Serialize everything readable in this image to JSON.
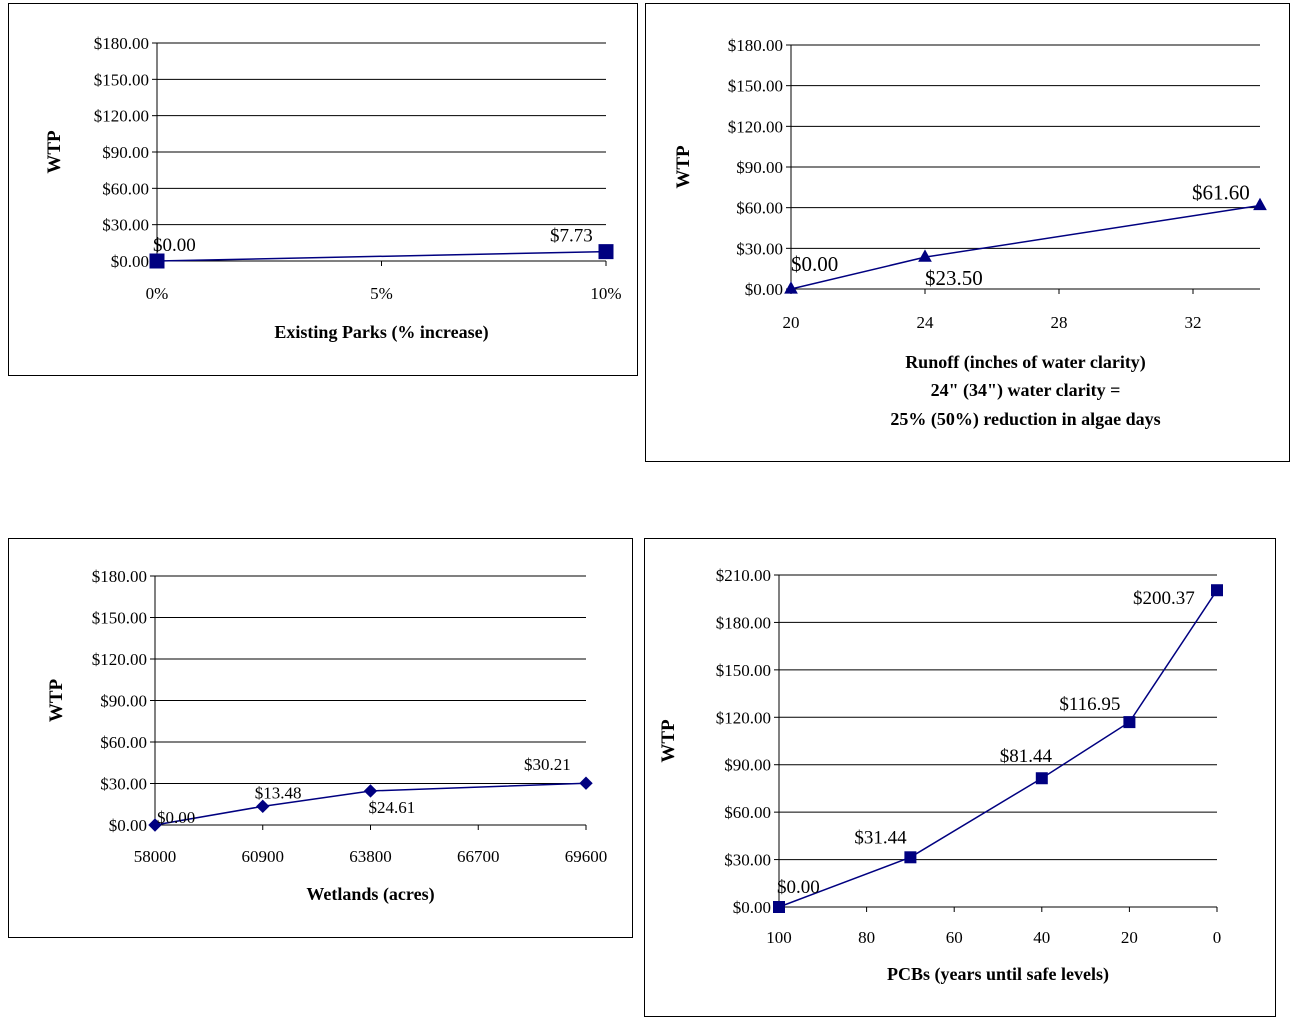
{
  "chart_data": [
    {
      "type": "line",
      "id": "parks",
      "ylabel": "WTP",
      "xlabel": [
        "Existing Parks (% increase)"
      ],
      "x": [
        0,
        10
      ],
      "x_tick_values": [
        0,
        5,
        10
      ],
      "x_tick_labels": [
        "0%",
        "5%",
        "10%"
      ],
      "xlim": [
        0,
        10
      ],
      "values": [
        0.0,
        7.73
      ],
      "data_labels": [
        "$0.00",
        "$7.73"
      ],
      "ylim": [
        0,
        180
      ],
      "y_ticks": [
        0,
        30,
        60,
        90,
        120,
        150,
        180
      ],
      "y_tick_labels": [
        "$0.00",
        "$30.00",
        "$60.00",
        "$90.00",
        "$120.00",
        "$150.00",
        "$180.00"
      ],
      "marker": "square",
      "color": "#000080",
      "grid": true
    },
    {
      "type": "line",
      "id": "runoff",
      "ylabel": "WTP",
      "xlabel": [
        "Runoff (inches of water clarity)",
        "24\" (34\") water clarity =",
        "25% (50%) reduction in algae days"
      ],
      "x": [
        20,
        24,
        34
      ],
      "x_tick_values": [
        20,
        24,
        28,
        32
      ],
      "x_tick_labels": [
        "20",
        "24",
        "28",
        "32"
      ],
      "xlim": [
        20,
        34
      ],
      "values": [
        0.0,
        23.5,
        61.6
      ],
      "data_labels": [
        "$0.00",
        "$23.50",
        "$61.60"
      ],
      "ylim": [
        0,
        180
      ],
      "y_ticks": [
        0,
        30,
        60,
        90,
        120,
        150,
        180
      ],
      "y_tick_labels": [
        "$0.00",
        "$30.00",
        "$60.00",
        "$90.00",
        "$120.00",
        "$150.00",
        "$180.00"
      ],
      "marker": "triangle",
      "color": "#000080",
      "grid": true
    },
    {
      "type": "line",
      "id": "wetlands",
      "ylabel": "WTP",
      "xlabel": [
        "Wetlands (acres)"
      ],
      "x": [
        58000,
        60900,
        63800,
        69600
      ],
      "x_tick_values": [
        58000,
        60900,
        63800,
        66700,
        69600
      ],
      "x_tick_labels": [
        "58000",
        "60900",
        "63800",
        "66700",
        "69600"
      ],
      "xlim": [
        58000,
        69600
      ],
      "values": [
        0.0,
        13.48,
        24.61,
        30.21
      ],
      "data_labels": [
        "$0.00",
        "$13.48",
        "$24.61",
        "$30.21"
      ],
      "ylim": [
        0,
        180
      ],
      "y_ticks": [
        0,
        30,
        60,
        90,
        120,
        150,
        180
      ],
      "y_tick_labels": [
        "$0.00",
        "$30.00",
        "$60.00",
        "$90.00",
        "$120.00",
        "$150.00",
        "$180.00"
      ],
      "marker": "diamond",
      "color": "#000080",
      "grid": true
    },
    {
      "type": "line",
      "id": "pcbs",
      "ylabel": "WTP",
      "xlabel": [
        "PCBs (years until safe levels)"
      ],
      "x": [
        100,
        70,
        40,
        20,
        0
      ],
      "x_tick_values": [
        100,
        80,
        60,
        40,
        20,
        0
      ],
      "x_tick_labels": [
        "100",
        "80",
        "60",
        "40",
        "20",
        "0"
      ],
      "xlim": [
        100,
        0
      ],
      "values": [
        0.0,
        31.44,
        81.44,
        116.95,
        200.37
      ],
      "data_labels": [
        "$0.00",
        "$31.44",
        "$81.44",
        "$116.95",
        "$200.37"
      ],
      "ylim": [
        0,
        210
      ],
      "y_ticks": [
        0,
        30,
        60,
        90,
        120,
        150,
        180,
        210
      ],
      "y_tick_labels": [
        "$0.00",
        "$30.00",
        "$60.00",
        "$90.00",
        "$120.00",
        "$150.00",
        "$180.00",
        "$210.00"
      ],
      "marker": "square",
      "color": "#000080",
      "grid": true
    }
  ]
}
